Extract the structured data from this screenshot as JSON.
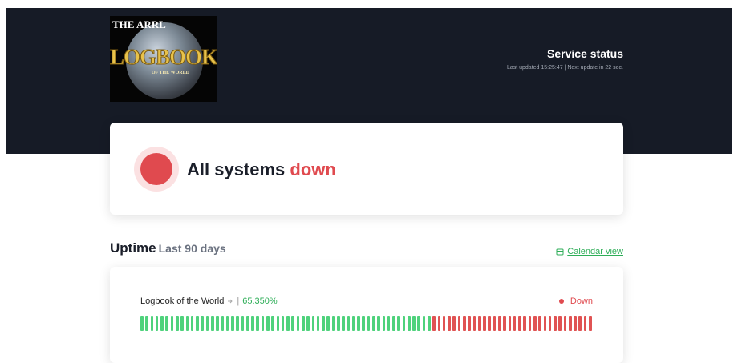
{
  "header": {
    "logo": {
      "top": "THE ARRL",
      "main": "LOGBOOK",
      "sub": "OF THE WORLD"
    },
    "title": "Service status",
    "updated": "Last updated 15:25:47 | Next update in 22 sec."
  },
  "status": {
    "prefix": "All systems",
    "state": "down"
  },
  "uptime": {
    "title": "Uptime",
    "period": "Last 90 days",
    "calendar_link": "Calendar view"
  },
  "service": {
    "name": "Logbook of the World",
    "separator": "|",
    "uptime": "65.350%",
    "state": "Down",
    "status_colors": {
      "up": "#4fd27c",
      "down": "#e05353"
    },
    "days": [
      "up",
      "up",
      "up",
      "up",
      "up",
      "up",
      "up",
      "up",
      "up",
      "up",
      "up",
      "up",
      "up",
      "up",
      "up",
      "up",
      "up",
      "up",
      "up",
      "up",
      "up",
      "up",
      "up",
      "up",
      "up",
      "up",
      "up",
      "up",
      "up",
      "up",
      "up",
      "up",
      "up",
      "up",
      "up",
      "up",
      "up",
      "up",
      "up",
      "up",
      "up",
      "up",
      "up",
      "up",
      "up",
      "up",
      "up",
      "up",
      "up",
      "up",
      "up",
      "up",
      "up",
      "up",
      "up",
      "up",
      "up",
      "up",
      "down",
      "down",
      "down",
      "down",
      "down",
      "down",
      "down",
      "down",
      "down",
      "down",
      "down",
      "down",
      "down",
      "down",
      "down",
      "down",
      "down",
      "down",
      "down",
      "down",
      "down",
      "down",
      "down",
      "down",
      "down",
      "down",
      "down",
      "down",
      "down",
      "down",
      "down",
      "down"
    ]
  }
}
